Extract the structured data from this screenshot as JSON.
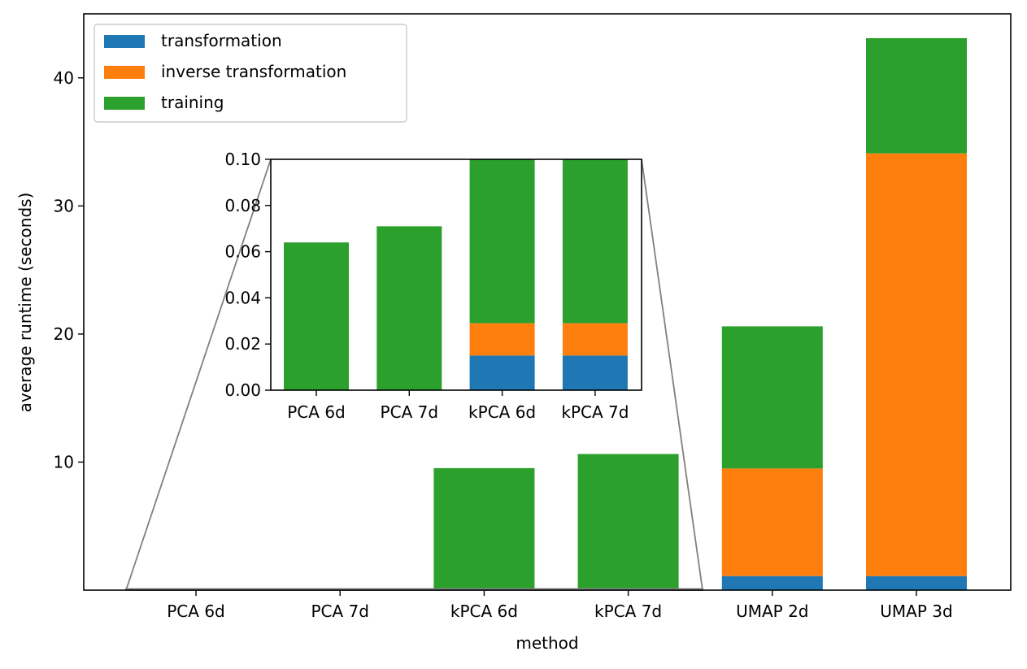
{
  "chart_data": {
    "type": "bar",
    "stacked": true,
    "xlabel": "method",
    "ylabel": "average runtime (seconds)",
    "categories": [
      "PCA 6d",
      "PCA 7d",
      "kPCA 6d",
      "kPCA 7d",
      "UMAP 2d",
      "UMAP 3d"
    ],
    "series": [
      {
        "name": "transformation",
        "color": "#1f77b4",
        "values": [
          0.0,
          0.0,
          0.015,
          0.015,
          1.1,
          1.1
        ]
      },
      {
        "name": "inverse transformation",
        "color": "#ff7f0e",
        "values": [
          0.0,
          0.0,
          0.014,
          0.014,
          8.4,
          33.0
        ]
      },
      {
        "name": "training",
        "color": "#2ca02c",
        "values": [
          0.064,
          0.071,
          9.5,
          10.6,
          11.1,
          9.0
        ]
      }
    ],
    "ylim": [
      0,
      45
    ],
    "yticks": [
      10,
      20,
      30,
      40
    ],
    "legend": {
      "position": "top-left"
    },
    "inset": {
      "categories": [
        "PCA 6d",
        "PCA 7d",
        "kPCA 6d",
        "kPCA 7d"
      ],
      "ylim": [
        0,
        0.1
      ],
      "yticks": [
        0.0,
        0.02,
        0.04,
        0.06,
        0.08,
        0.1
      ],
      "ytick_labels": [
        "0.00",
        "0.02",
        "0.04",
        "0.06",
        "0.08",
        "0.10"
      ],
      "indicator_color": "#808080"
    }
  }
}
